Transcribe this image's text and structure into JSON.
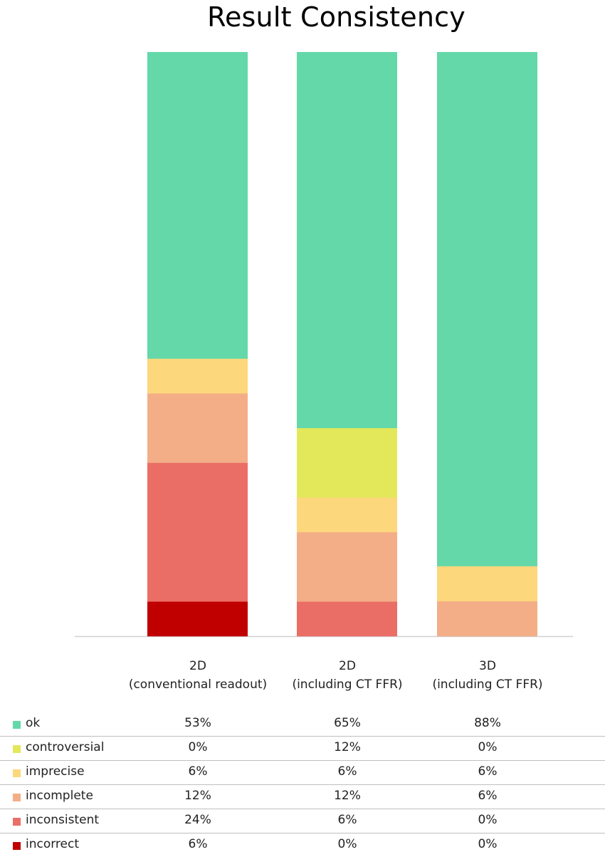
{
  "chart_data": {
    "type": "bar",
    "stacked": true,
    "title": "Result Consistency",
    "categories": [
      "2D\n(conventional readout)",
      "2D\n(including CT FFR)",
      "3D\n(including CT FFR)"
    ],
    "series": [
      {
        "name": "incorrect",
        "color": "#c00000",
        "values": [
          6,
          0,
          0
        ],
        "labels": [
          "6%",
          "0%",
          "0%"
        ]
      },
      {
        "name": "inconsistent",
        "color": "#ea6e66",
        "values": [
          24,
          6,
          0
        ],
        "labels": [
          "24%",
          "6%",
          "0%"
        ]
      },
      {
        "name": "incomplete",
        "color": "#f3ae87",
        "values": [
          12,
          12,
          6
        ],
        "labels": [
          "12%",
          "12%",
          "6%"
        ]
      },
      {
        "name": "imprecise",
        "color": "#fdd77c",
        "values": [
          6,
          6,
          6
        ],
        "labels": [
          "6%",
          "6%",
          "6%"
        ]
      },
      {
        "name": "controversial",
        "color": "#e2e85a",
        "values": [
          0,
          12,
          0
        ],
        "labels": [
          "0%",
          "12%",
          "0%"
        ]
      },
      {
        "name": "ok",
        "color": "#64d8a9",
        "values": [
          53,
          65,
          88
        ],
        "labels": [
          "53%",
          "65%",
          "88%"
        ]
      }
    ],
    "table_order": [
      "ok",
      "controversial",
      "imprecise",
      "incomplete",
      "inconsistent",
      "incorrect"
    ],
    "ylim": [
      0,
      100
    ],
    "grid": false,
    "legend": "data-table"
  }
}
